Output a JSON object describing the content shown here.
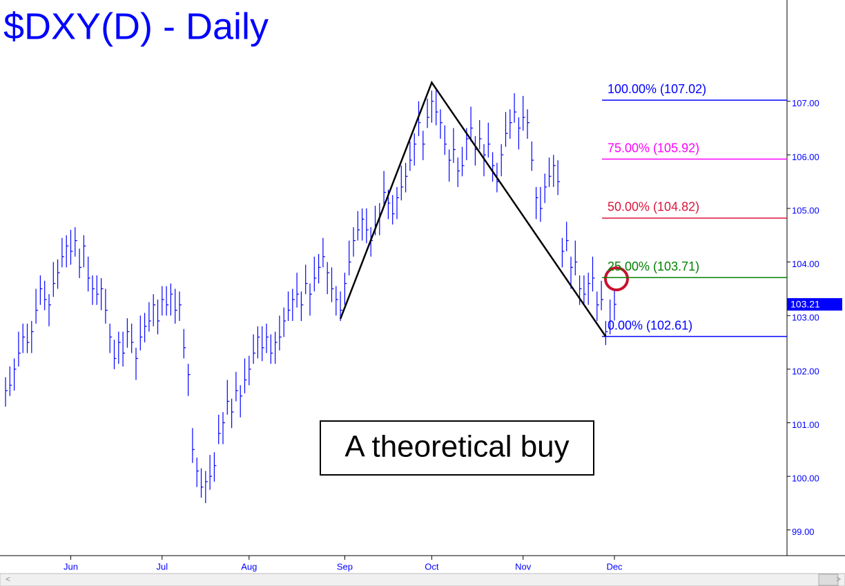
{
  "chart_data": {
    "type": "hlc",
    "title": "$DXY(D) - Daily",
    "color": "#0000ff",
    "categories": [
      null,
      null,
      null,
      null,
      null,
      null,
      null,
      null,
      null,
      null,
      null,
      null,
      null,
      null,
      null,
      "Jun",
      null,
      null,
      null,
      null,
      null,
      null,
      null,
      null,
      null,
      null,
      null,
      null,
      null,
      null,
      null,
      null,
      null,
      null,
      null,
      null,
      "Jul",
      null,
      null,
      null,
      null,
      null,
      null,
      null,
      null,
      null,
      null,
      null,
      null,
      null,
      null,
      null,
      null,
      null,
      null,
      null,
      "Aug",
      null,
      null,
      null,
      null,
      null,
      null,
      null,
      null,
      null,
      null,
      null,
      null,
      null,
      null,
      null,
      null,
      null,
      null,
      null,
      null,
      null,
      "Sep",
      null,
      null,
      null,
      null,
      null,
      null,
      null,
      null,
      null,
      null,
      null,
      null,
      null,
      null,
      null,
      null,
      null,
      null,
      null,
      "Oct",
      null,
      null,
      null,
      null,
      null,
      null,
      null,
      null,
      null,
      null,
      null,
      null,
      null,
      null,
      null,
      null,
      null,
      null,
      null,
      null,
      "Nov",
      null,
      null,
      null,
      null,
      null,
      null,
      null,
      null,
      null,
      null,
      null,
      null,
      null,
      null,
      null,
      null,
      null,
      null,
      null,
      null,
      "Dec"
    ],
    "high": [
      101.85,
      102.05,
      102.2,
      102.7,
      102.85,
      102.85,
      102.9,
      103.5,
      103.75,
      103.65,
      103.4,
      104.0,
      104.05,
      104.45,
      104.5,
      104.6,
      104.65,
      104.25,
      104.5,
      104.1,
      103.75,
      103.75,
      103.7,
      103.5,
      102.85,
      102.55,
      102.7,
      102.7,
      102.95,
      102.85,
      102.4,
      103.0,
      103.05,
      103.25,
      103.4,
      103.3,
      103.55,
      103.55,
      103.6,
      103.5,
      103.45,
      102.75,
      102.1,
      100.9,
      100.35,
      100.15,
      100.1,
      100.4,
      100.45,
      101.15,
      101.2,
      101.8,
      101.45,
      101.95,
      101.7,
      102.2,
      102.25,
      102.65,
      102.8,
      102.8,
      102.85,
      102.65,
      102.7,
      103.0,
      103.15,
      103.45,
      103.5,
      103.8,
      103.45,
      103.95,
      103.6,
      104.1,
      104.15,
      104.45,
      104.0,
      103.9,
      103.55,
      103.45,
      103.8,
      104.4,
      104.65,
      104.95,
      105.0,
      105.0,
      104.65,
      105.05,
      105.1,
      105.7,
      105.35,
      105.25,
      105.4,
      105.8,
      105.85,
      106.25,
      106.4,
      107.0,
      106.45,
      107.05,
      107.2,
      107.2,
      106.85,
      106.55,
      106.1,
      106.5,
      105.95,
      106.15,
      106.5,
      106.9,
      106.35,
      106.65,
      106.2,
      106.6,
      106.05,
      105.85,
      106.2,
      106.8,
      106.85,
      107.15,
      106.7,
      107.1,
      106.85,
      106.25,
      105.4,
      105.4,
      105.65,
      105.95,
      106.0,
      105.9,
      104.45,
      104.75,
      104.1,
      104.4,
      103.75,
      103.75,
      103.8,
      104.1,
      103.45,
      103.65,
      102.9,
      103.3,
      103.46
    ],
    "low": [
      101.3,
      101.5,
      101.6,
      102.05,
      102.3,
      102.3,
      102.3,
      102.85,
      103.2,
      103.1,
      102.8,
      103.35,
      103.5,
      103.9,
      103.9,
      103.95,
      104.1,
      103.7,
      103.9,
      103.45,
      103.2,
      103.2,
      103.1,
      102.85,
      102.3,
      102.0,
      102.1,
      102.05,
      102.4,
      102.3,
      101.8,
      102.35,
      102.5,
      102.7,
      102.8,
      102.65,
      103.0,
      103.0,
      103.0,
      102.85,
      102.9,
      102.2,
      101.5,
      100.25,
      99.8,
      99.6,
      99.5,
      99.75,
      99.9,
      100.6,
      100.6,
      101.15,
      100.9,
      101.4,
      101.1,
      101.55,
      101.7,
      102.1,
      102.2,
      102.15,
      102.3,
      102.1,
      102.1,
      102.35,
      102.6,
      102.9,
      102.9,
      103.15,
      102.9,
      103.4,
      103.0,
      103.45,
      103.6,
      103.9,
      103.4,
      103.25,
      103.0,
      102.9,
      103.2,
      103.75,
      104.1,
      104.4,
      104.4,
      104.35,
      104.1,
      104.5,
      104.5,
      105.05,
      104.8,
      104.7,
      104.8,
      105.15,
      105.3,
      105.7,
      105.8,
      106.35,
      105.9,
      106.5,
      106.6,
      106.55,
      106.3,
      106.0,
      105.5,
      105.85,
      105.4,
      105.6,
      105.9,
      106.25,
      105.8,
      106.1,
      105.6,
      105.95,
      105.5,
      105.3,
      105.6,
      106.15,
      106.3,
      106.6,
      106.1,
      106.45,
      106.3,
      105.7,
      104.8,
      104.75,
      105.1,
      105.4,
      105.4,
      105.25,
      103.9,
      104.2,
      103.5,
      103.75,
      103.2,
      103.2,
      103.2,
      103.45,
      102.9,
      103.1,
      102.45,
      102.65,
      102.91
    ],
    "close": [
      101.6,
      101.7,
      102.0,
      102.3,
      102.6,
      102.5,
      102.7,
      103.1,
      103.5,
      103.3,
      103.2,
      103.6,
      103.8,
      104.1,
      104.3,
      104.2,
      104.4,
      103.9,
      104.3,
      103.7,
      103.5,
      103.4,
      103.5,
      103.1,
      102.6,
      102.2,
      102.5,
      102.3,
      102.7,
      102.5,
      102.2,
      102.6,
      102.8,
      102.9,
      103.2,
      102.9,
      103.3,
      103.2,
      103.4,
      103.1,
      103.2,
      102.4,
      101.9,
      100.5,
      100.1,
      99.8,
      99.9,
      100.0,
      100.2,
      100.8,
      101.0,
      101.4,
      101.2,
      101.6,
      101.5,
      101.8,
      102.0,
      102.3,
      102.6,
      102.4,
      102.6,
      102.3,
      102.5,
      102.6,
      102.9,
      103.1,
      103.3,
      103.4,
      103.2,
      103.6,
      103.4,
      103.7,
      103.9,
      104.1,
      103.8,
      103.5,
      103.3,
      103.1,
      103.6,
      104.0,
      104.4,
      104.6,
      104.8,
      104.6,
      104.4,
      104.7,
      104.9,
      105.3,
      105.1,
      104.9,
      105.2,
      105.4,
      105.6,
      105.9,
      106.2,
      106.6,
      106.2,
      106.7,
      107.0,
      106.8,
      106.6,
      106.2,
      105.9,
      106.1,
      105.7,
      105.8,
      106.3,
      106.5,
      106.1,
      106.3,
      106.0,
      106.2,
      105.8,
      105.5,
      106.0,
      106.4,
      106.6,
      106.8,
      106.5,
      106.7,
      106.6,
      105.9,
      105.2,
      105.0,
      105.4,
      105.6,
      105.8,
      105.5,
      104.2,
      104.4,
      103.9,
      104.0,
      103.5,
      103.4,
      103.6,
      103.7,
      103.2,
      103.3,
      102.7,
      102.9,
      103.21
    ],
    "ylim": [
      98.52,
      108.89
    ],
    "yticks": [
      {
        "value": 99,
        "label": "99.00"
      },
      {
        "value": 100,
        "label": "100.00"
      },
      {
        "value": 101,
        "label": "101.00"
      },
      {
        "value": 102,
        "label": "102.00"
      },
      {
        "value": 103,
        "label": "103.00"
      },
      {
        "value": 104,
        "label": "104.00"
      },
      {
        "value": 105,
        "label": "105.00"
      },
      {
        "value": 106,
        "label": "106.00"
      },
      {
        "value": 107,
        "label": "107.00"
      }
    ],
    "fib_levels": [
      {
        "label": "100.00% (107.02)",
        "value": 107.02,
        "color": "#0000ff"
      },
      {
        "label": "75.00% (105.92)",
        "value": 105.92,
        "color": "#ff00ff"
      },
      {
        "label": "50.00% (104.82)",
        "value": 104.82,
        "color": "#dc143c"
      },
      {
        "label": "25.00% (103.71)",
        "value": 103.71,
        "color": "#008000"
      },
      {
        "label": "0.00% (102.61)",
        "value": 102.61,
        "color": "#0000ff"
      }
    ],
    "pattern_line": {
      "x": [
        77,
        98,
        138
      ],
      "values": [
        102.94,
        107.35,
        102.61
      ],
      "color": "#000000"
    },
    "annotation": "A theoretical buy"
  }
}
